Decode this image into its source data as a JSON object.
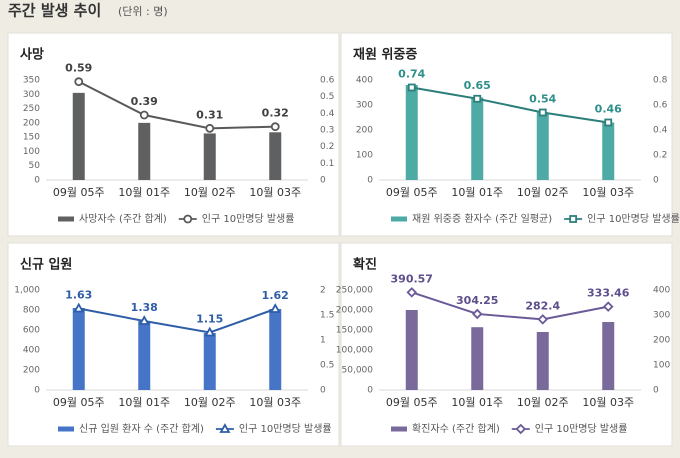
{
  "title": "주간 발생 추이",
  "unit": "(단위 : 명)",
  "chart_data": [
    {
      "type": "bar-line",
      "title": "사망",
      "categories": [
        "09월 05주",
        "10월 01주",
        "10월 02주",
        "10월 03주"
      ],
      "series": [
        {
          "name": "사망자수 (주간 합계)",
          "color": "#5f6061",
          "values": [
            305,
            200,
            163,
            167
          ]
        },
        {
          "name": "인구 10만명당 발생률",
          "color": "#595959",
          "axis": "y2",
          "marker": "circle",
          "values": [
            0.59,
            0.39,
            0.31,
            0.32
          ]
        }
      ],
      "ylim": [
        0,
        350
      ],
      "yticks": [
        0,
        50,
        100,
        150,
        200,
        250,
        300,
        350
      ],
      "y2lim": [
        0,
        0.6
      ],
      "y2ticks": [
        0,
        0.1,
        0.2,
        0.3,
        0.4,
        0.5,
        0.6
      ],
      "label_color": "#404040"
    },
    {
      "type": "bar-line",
      "title": "재원 위중증",
      "categories": [
        "09월 05주",
        "10월 01주",
        "10월 02주",
        "10월 03주"
      ],
      "series": [
        {
          "name": "재원 위중증 환자수 (주간 일평균)",
          "color": "#4eaaa5",
          "values": [
            380,
            330,
            270,
            230
          ]
        },
        {
          "name": "인구 10만명당 발생률",
          "color": "#2d7f7b",
          "axis": "y2",
          "marker": "square",
          "values": [
            0.74,
            0.65,
            0.54,
            0.46
          ]
        }
      ],
      "ylim": [
        0,
        400
      ],
      "yticks": [
        0,
        100,
        200,
        300,
        400
      ],
      "y2lim": [
        0,
        0.8
      ],
      "y2ticks": [
        0,
        0.2,
        0.4,
        0.6,
        0.8
      ],
      "label_color": "#2f8f8a"
    },
    {
      "type": "bar-line",
      "title": "신규 입원",
      "categories": [
        "09월 05주",
        "10월 01주",
        "10월 02주",
        "10월 03주"
      ],
      "series": [
        {
          "name": "신규 입원 환자 수 (주간 합계)",
          "color": "#4674c6",
          "values": [
            820,
            690,
            570,
            810
          ]
        },
        {
          "name": "인구 10만명당 발생률",
          "color": "#2f5ea8",
          "axis": "y2",
          "marker": "triangle",
          "values": [
            1.63,
            1.38,
            1.15,
            1.62
          ]
        }
      ],
      "ylim": [
        0,
        1000
      ],
      "yticks": [
        0,
        200,
        400,
        600,
        800,
        {
          "value": 1000,
          "label": "1,000"
        }
      ],
      "y2lim": [
        0,
        2
      ],
      "y2ticks": [
        0,
        0.5,
        1,
        1.5,
        2
      ],
      "label_color": "#2f5ea8"
    },
    {
      "type": "bar-line",
      "title": "확진",
      "categories": [
        "09월 05주",
        "10월 01주",
        "10월 02주",
        "10월 03주"
      ],
      "series": [
        {
          "name": "확진자수 (주간 합계)",
          "color": "#7a6a9c",
          "values": [
            200000,
            157000,
            145000,
            170000
          ]
        },
        {
          "name": "인구 10만명당 발생률",
          "color": "#6b5a98",
          "axis": "y2",
          "marker": "diamond",
          "values": [
            390.57,
            304.25,
            282.4,
            333.46
          ]
        }
      ],
      "ylim": [
        0,
        250000
      ],
      "yticks": [
        0,
        {
          "value": 50000,
          "label": "50,000"
        },
        {
          "value": 100000,
          "label": "100,000"
        },
        {
          "value": 150000,
          "label": "150,000"
        },
        {
          "value": 200000,
          "label": "200,000"
        },
        {
          "value": 250000,
          "label": "250,000"
        }
      ],
      "y2lim": [
        0,
        400
      ],
      "y2ticks": [
        0,
        100,
        200,
        300,
        400
      ],
      "label_color": "#5f4f8c"
    }
  ]
}
